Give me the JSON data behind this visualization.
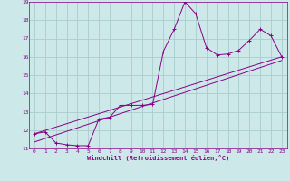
{
  "xlabel": "Windchill (Refroidissement éolien,°C)",
  "background_color": "#cce8e8",
  "grid_color": "#aacccc",
  "line_color": "#880088",
  "xlim": [
    -0.5,
    23.5
  ],
  "ylim": [
    11,
    19
  ],
  "xticks": [
    0,
    1,
    2,
    3,
    4,
    5,
    6,
    7,
    8,
    9,
    10,
    11,
    12,
    13,
    14,
    15,
    16,
    17,
    18,
    19,
    20,
    21,
    22,
    23
  ],
  "yticks": [
    11,
    12,
    13,
    14,
    15,
    16,
    17,
    18,
    19
  ],
  "curve_x": [
    0,
    1,
    2,
    3,
    4,
    5,
    6,
    7,
    8,
    9,
    10,
    11,
    12,
    13,
    14,
    15,
    16,
    17,
    18,
    19,
    20,
    21,
    22,
    23
  ],
  "curve_y": [
    11.8,
    11.9,
    11.3,
    11.2,
    11.15,
    11.15,
    12.6,
    12.7,
    13.35,
    13.35,
    13.35,
    13.4,
    16.3,
    17.5,
    19.0,
    18.35,
    16.5,
    16.1,
    16.15,
    16.35,
    16.9,
    17.5,
    17.15,
    16.0
  ],
  "line1_x": [
    0,
    23
  ],
  "line1_y": [
    11.8,
    16.0
  ],
  "line2_x": [
    0,
    23
  ],
  "line2_y": [
    11.35,
    15.8
  ]
}
